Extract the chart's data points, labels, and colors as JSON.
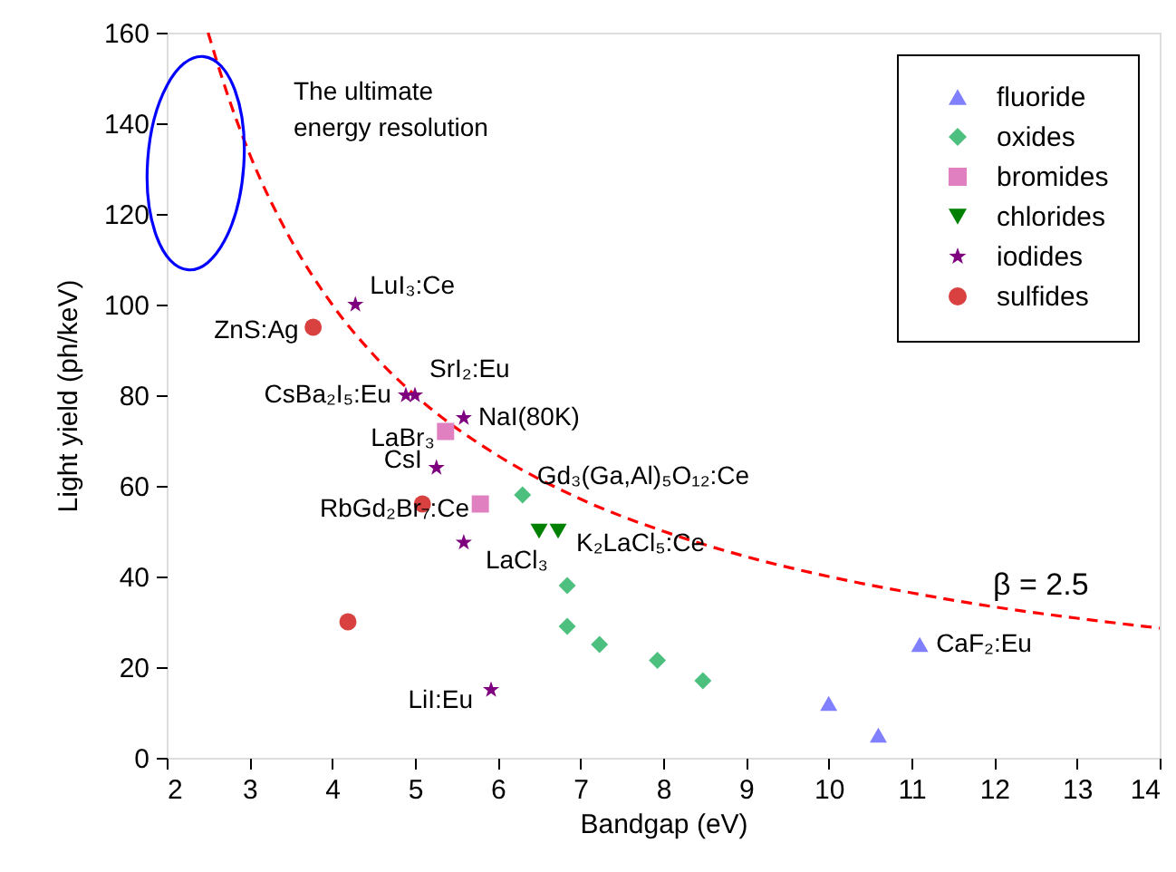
{
  "chart_data": {
    "type": "scatter",
    "xlabel": "Bandgap (eV)",
    "ylabel": "Light yield (ph/keV)",
    "xlim": [
      2,
      14
    ],
    "xticks": [
      2,
      3,
      4,
      5,
      6,
      7,
      8,
      9,
      10,
      11,
      12,
      13,
      14
    ],
    "ylim": [
      0,
      160
    ],
    "yticks": [
      0,
      20,
      40,
      60,
      80,
      100,
      120,
      140,
      160
    ],
    "grid": false,
    "legend": "top right",
    "series": [
      {
        "name": "fluoride",
        "color": "#8080ff",
        "marker": "triangle",
        "x": [
          10.0,
          10.6,
          11.1
        ],
        "values": [
          12,
          5,
          25
        ]
      },
      {
        "name": "oxides",
        "color": "#4dbf7f",
        "marker": "diamond",
        "x": [
          6.3,
          6.84,
          6.84,
          7.23,
          7.93,
          8.48
        ],
        "values": [
          58,
          38,
          29,
          25,
          21.5,
          17
        ]
      },
      {
        "name": "bromides",
        "color": "#e080c0",
        "marker": "square",
        "x": [
          5.37,
          5.79
        ],
        "values": [
          72,
          56
        ]
      },
      {
        "name": "chlorides",
        "color": "#008000",
        "marker": "triangle-down",
        "x": [
          6.5,
          6.73
        ],
        "values": [
          50,
          50
        ]
      },
      {
        "name": "iodides",
        "color": "#7f007f",
        "marker": "star",
        "x": [
          4.28,
          4.89,
          5.0,
          5.59,
          5.26,
          5.59,
          5.92
        ],
        "values": [
          100,
          80,
          80,
          75,
          64,
          47.5,
          15
        ]
      },
      {
        "name": "sulfides",
        "color": "#d94040",
        "marker": "circle",
        "x": [
          3.77,
          5.09,
          4.19
        ],
        "values": [
          95,
          56,
          30
        ]
      },
      {
        "type": "line",
        "color": "#ff0000",
        "line_style": "dashed",
        "x": [
          2.5,
          2.75,
          3,
          3.5,
          4,
          4.5,
          5,
          6,
          7,
          8,
          9,
          10,
          11,
          12,
          13,
          14
        ],
        "values": [
          160,
          145.5,
          133.3,
          114.3,
          100,
          88.9,
          80,
          66.7,
          57.1,
          50,
          44.4,
          40,
          36.4,
          33.3,
          30.8,
          28.6
        ]
      }
    ],
    "annotations": [
      {
        "text": "LuI₃:Ce",
        "x": 4.28,
        "y": 100
      },
      {
        "text": "ZnS:Ag",
        "x": 3.77,
        "y": 95
      },
      {
        "text": "CsBa₂I₅:Eu",
        "x": 4.89,
        "y": 80
      },
      {
        "text": "SrI₂:Eu",
        "x": 5.0,
        "y": 80
      },
      {
        "text": "NaI(80K)",
        "x": 5.59,
        "y": 75
      },
      {
        "text": "LaBr₃",
        "x": 5.37,
        "y": 72
      },
      {
        "text": "CsI",
        "x": 5.26,
        "y": 64
      },
      {
        "text": "RbGd₂Br₇:Ce",
        "x": 5.79,
        "y": 56
      },
      {
        "text": "Gd₃(Ga,Al)₅O₁₂:Ce",
        "x": 6.3,
        "y": 58
      },
      {
        "text": "K₂LaCl₅:Ce",
        "x": 6.73,
        "y": 50
      },
      {
        "text": "LaCl₃",
        "x": 5.59,
        "y": 47.5
      },
      {
        "text": "CaF₂:Eu",
        "x": 11.1,
        "y": 25
      },
      {
        "text": "LiI:Eu",
        "x": 5.92,
        "y": 15
      },
      "The ultimate energy resolution",
      "β = 2.5"
    ]
  }
}
